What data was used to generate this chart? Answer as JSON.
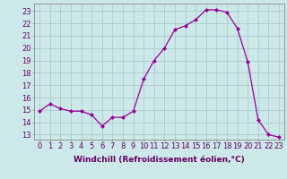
{
  "x": [
    0,
    1,
    2,
    3,
    4,
    5,
    6,
    7,
    8,
    9,
    10,
    11,
    12,
    13,
    14,
    15,
    16,
    17,
    18,
    19,
    20,
    21,
    22,
    23
  ],
  "y": [
    14.9,
    15.5,
    15.1,
    14.9,
    14.9,
    14.6,
    13.7,
    14.4,
    14.4,
    14.9,
    17.5,
    19.0,
    20.0,
    21.5,
    21.8,
    22.3,
    23.1,
    23.1,
    22.9,
    21.6,
    18.9,
    14.2,
    13.0,
    12.8
  ],
  "line_color": "#990099",
  "marker": "D",
  "marker_size": 2.0,
  "bg_color": "#cce8e8",
  "grid_color": "#aacccc",
  "xlabel": "Windchill (Refroidissement éolien,°C)",
  "xlabel_fontsize": 6.5,
  "ylabel_ticks": [
    13,
    14,
    15,
    16,
    17,
    18,
    19,
    20,
    21,
    22,
    23
  ],
  "ylim": [
    12.6,
    23.6
  ],
  "xlim": [
    -0.5,
    23.5
  ],
  "tick_fontsize": 6.0,
  "line_color_tick": "#660066"
}
